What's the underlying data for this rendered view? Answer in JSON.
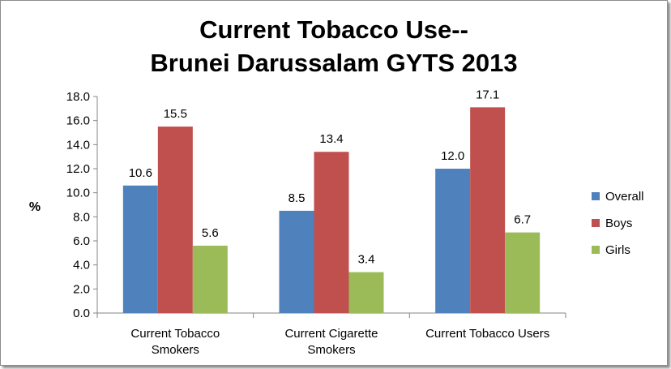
{
  "chart_data": {
    "type": "bar",
    "title": [
      "Current Tobacco Use--",
      "Brunei Darussalam GYTS 2013"
    ],
    "ylabel": "%",
    "ylim": [
      0,
      18
    ],
    "ytick_step": 2,
    "ytick_labels": [
      "0.0",
      "2.0",
      "4.0",
      "6.0",
      "8.0",
      "10.0",
      "12.0",
      "14.0",
      "16.0",
      "18.0"
    ],
    "categories": [
      [
        "Current Tobacco",
        "Smokers"
      ],
      [
        "Current Cigarette",
        "Smokers"
      ],
      [
        "Current Tobacco Users"
      ]
    ],
    "series": [
      {
        "name": "Overall",
        "color": "#4f81bd",
        "values": [
          10.6,
          8.5,
          12.0
        ],
        "labels": [
          "10.6",
          "8.5",
          "12.0"
        ]
      },
      {
        "name": "Boys",
        "color": "#c0504d",
        "values": [
          15.5,
          13.4,
          17.1
        ],
        "labels": [
          "15.5",
          "13.4",
          "17.1"
        ]
      },
      {
        "name": "Girls",
        "color": "#9bbb59",
        "values": [
          5.6,
          3.4,
          6.7
        ],
        "labels": [
          "5.6",
          "3.4",
          "6.7"
        ]
      }
    ],
    "legend_position": "right",
    "grid": false
  }
}
